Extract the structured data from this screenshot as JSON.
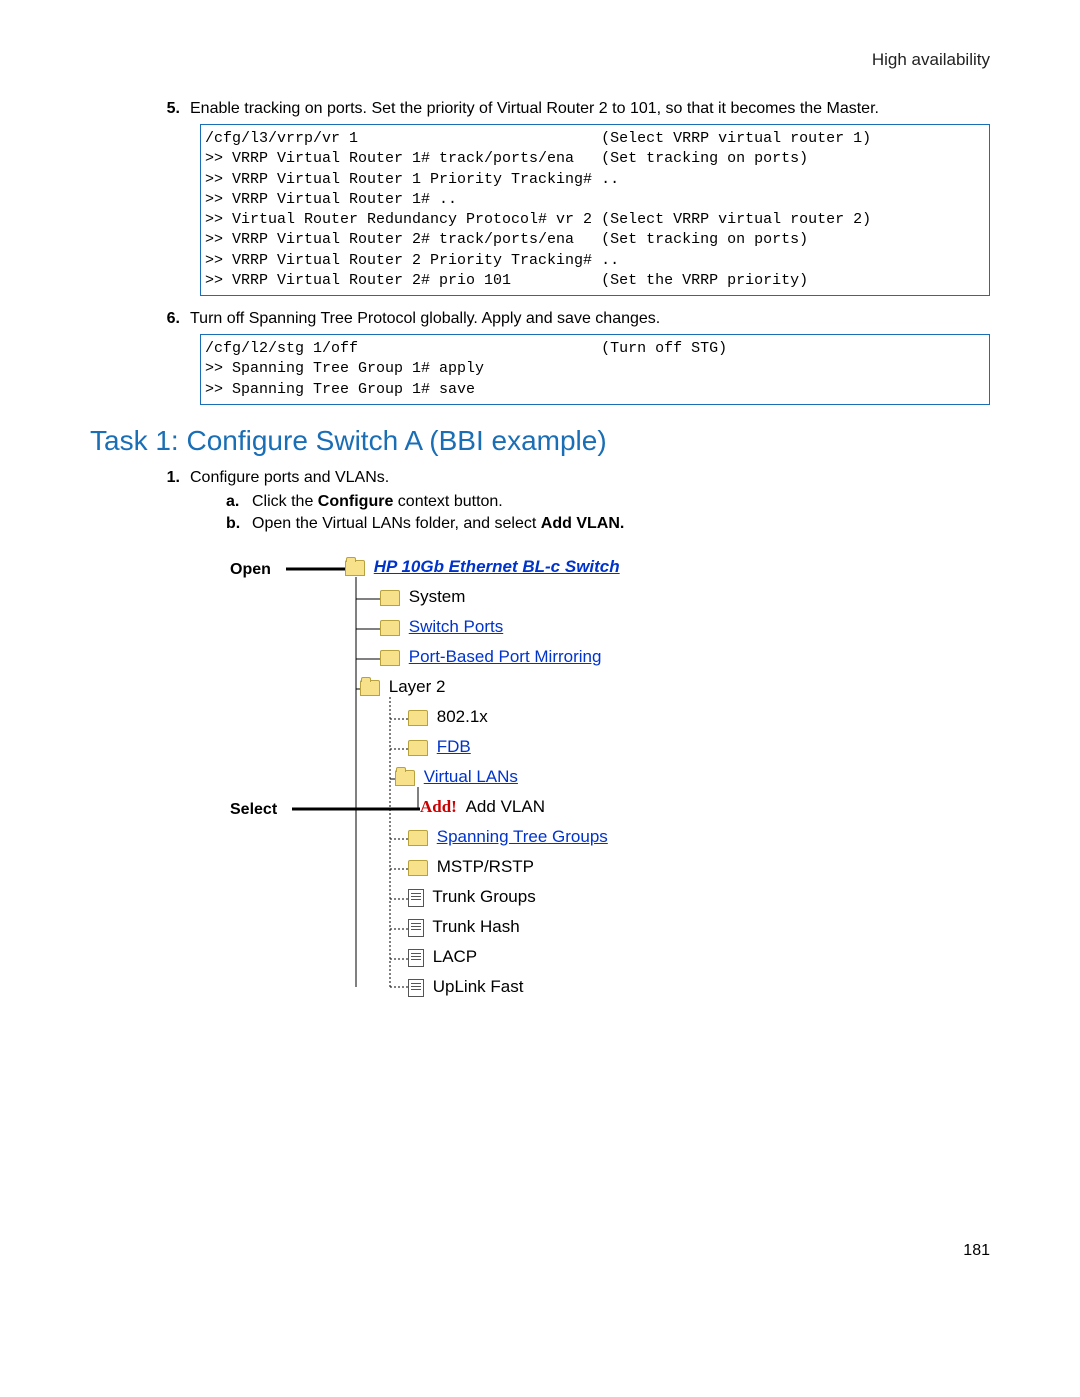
{
  "header": "High availability",
  "step5": {
    "num": "5.",
    "text": "Enable tracking on ports. Set the priority of Virtual Router 2 to 101, so that it becomes the Master.",
    "code": [
      {
        "l": "/cfg/l3/vrrp/vr 1",
        "r": "(Select VRRP virtual router 1)"
      },
      {
        "l": ">> VRRP Virtual Router 1# track/ports/ena",
        "r": "(Set tracking on ports)"
      },
      {
        "l": ">> VRRP Virtual Router 1 Priority Tracking# ..",
        "r": ""
      },
      {
        "l": ">> VRRP Virtual Router 1# ..",
        "r": ""
      },
      {
        "l": ">> Virtual Router Redundancy Protocol# vr 2 (Select VRRP virtual router 2)",
        "r": ""
      },
      {
        "l": ">> VRRP Virtual Router 2# track/ports/ena",
        "r": "(Set tracking on ports)"
      },
      {
        "l": ">> VRRP Virtual Router 2 Priority Tracking# ..",
        "r": ""
      },
      {
        "l": ">> VRRP Virtual Router 2# prio 101",
        "r": "(Set the VRRP priority)"
      }
    ]
  },
  "step6": {
    "num": "6.",
    "text": "Turn off Spanning Tree Protocol globally. Apply and save changes.",
    "code": [
      {
        "l": "/cfg/l2/stg 1/off",
        "r": "(Turn off STG)"
      },
      {
        "l": ">> Spanning Tree Group 1# apply",
        "r": ""
      },
      {
        "l": ">> Spanning Tree Group 1# save",
        "r": ""
      }
    ]
  },
  "task_heading": "Task 1: Configure Switch A (BBI example)",
  "task_step1": {
    "num": "1.",
    "text": "Configure ports and VLANs.",
    "a_prefix": "a.",
    "a_text_before": "Click the ",
    "a_bold": "Configure",
    "a_text_after": " context button.",
    "b_prefix": "b.",
    "b_text_before": "Open the Virtual LANs folder, and select ",
    "b_bold": "Add VLAN."
  },
  "tree": {
    "open_label": "Open",
    "select_label": "Select",
    "root": "HP 10Gb Ethernet BL-c Switch",
    "items": {
      "system": "System",
      "switch_ports": "Switch Ports",
      "port_mirror": "Port-Based Port Mirroring",
      "layer2": "Layer 2",
      "x8021": "802.1x",
      "fdb": "FDB",
      "vlans": "Virtual LANs",
      "add_label": "Add!",
      "add_vlan": "Add VLAN",
      "stg": "Spanning Tree Groups",
      "mstp": "MSTP/RSTP",
      "trunk_groups": "Trunk Groups",
      "trunk_hash": "Trunk Hash",
      "lacp": "LACP",
      "uplink": "UpLink Fast"
    }
  },
  "page_number": "181",
  "colors": {
    "blue": "#1a6eb5",
    "link": "#0033cc"
  }
}
